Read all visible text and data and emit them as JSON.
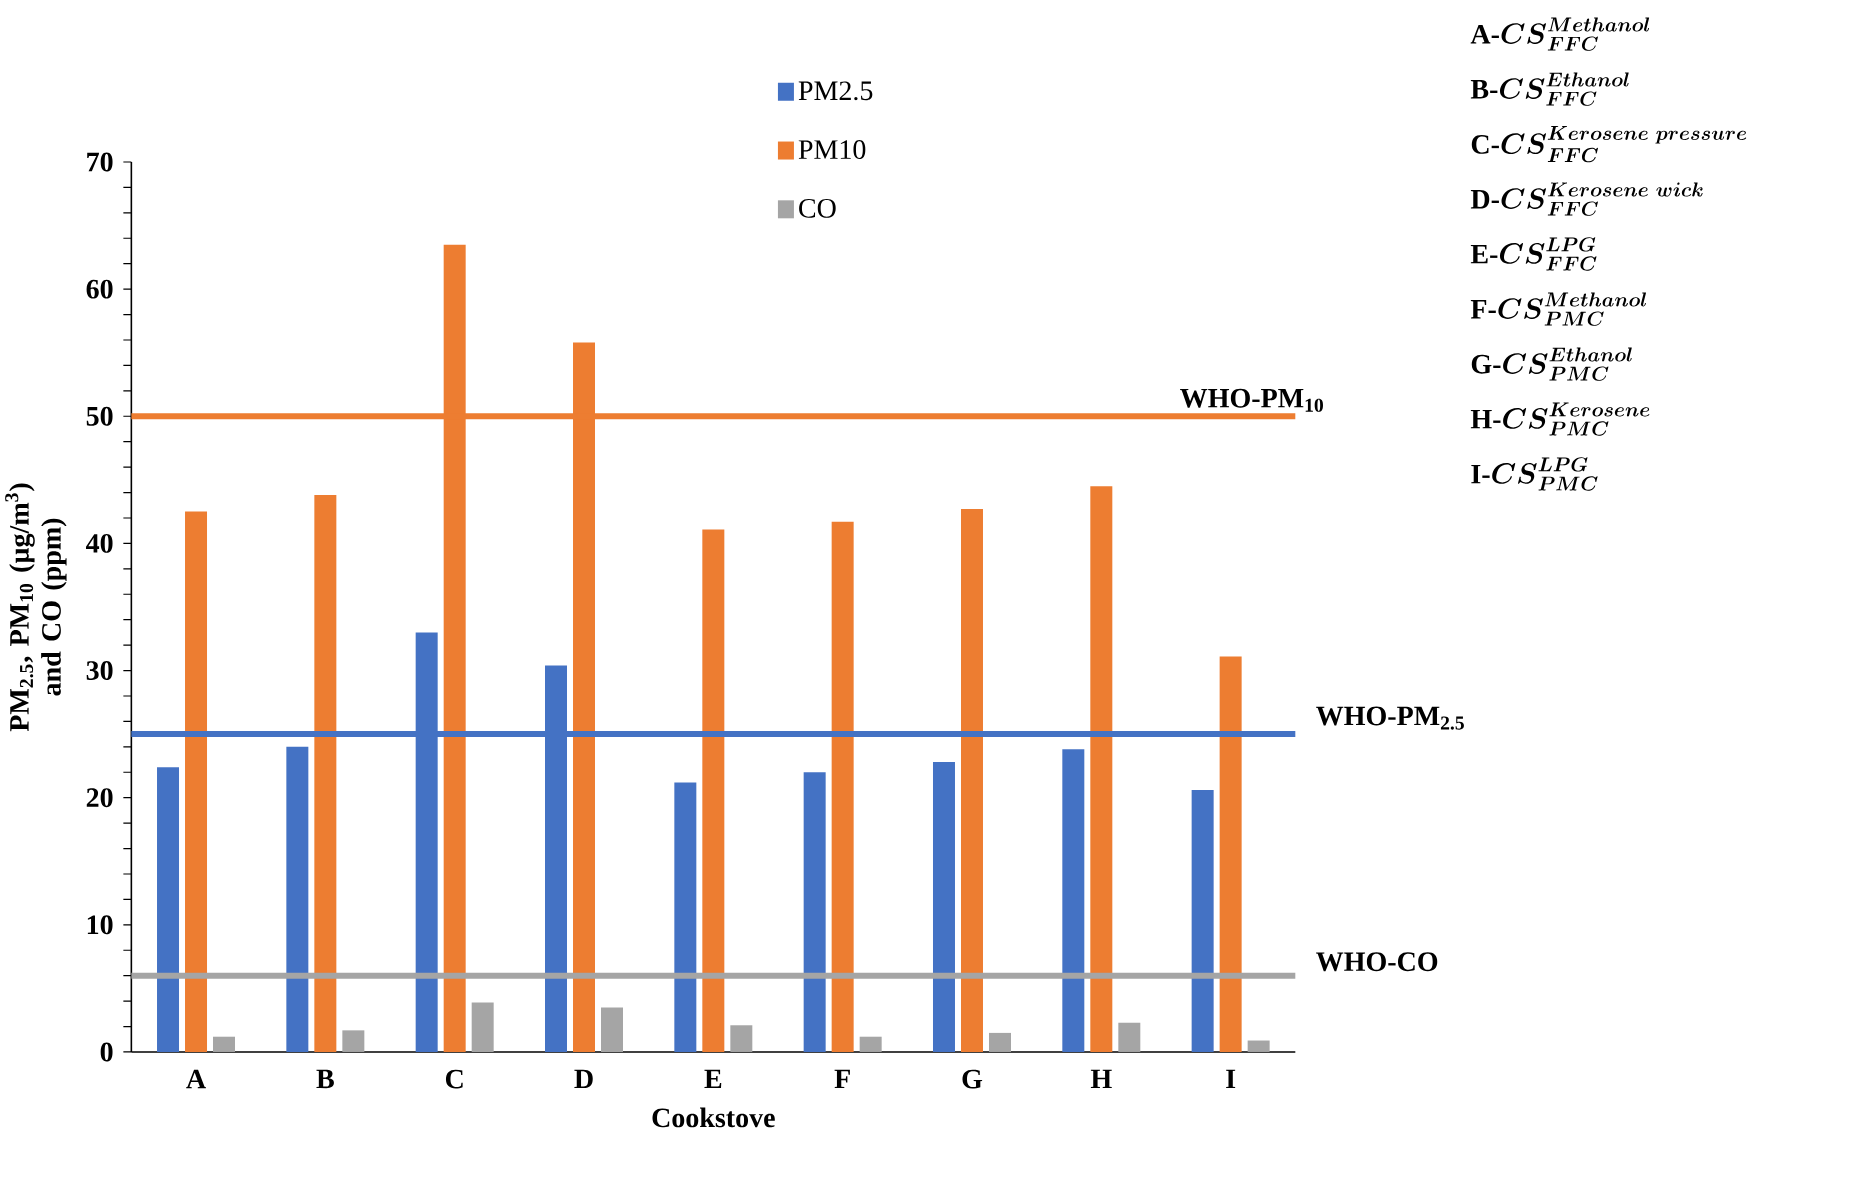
{
  "chart_data": {
    "type": "bar",
    "xlabel": "Cookstove",
    "ylabel": "PM$_{2.5}$, PM$_{10}$ (µg/m$^{3}$) and CO (ppm)",
    "categories": [
      "A",
      "B",
      "C",
      "D",
      "E",
      "F",
      "G",
      "H",
      "I"
    ],
    "series": [
      {
        "name": "PM2.5",
        "color": "#4472c4",
        "values": [
          22.4,
          24.0,
          33.0,
          30.4,
          21.2,
          22.0,
          22.8,
          23.8,
          20.6
        ]
      },
      {
        "name": "PM10",
        "color": "#ed7d31",
        "values": [
          42.5,
          43.8,
          63.5,
          55.8,
          41.1,
          41.7,
          42.7,
          44.5,
          31.1
        ]
      },
      {
        "name": "CO",
        "color": "#a5a5a5",
        "values": [
          1.2,
          1.7,
          3.9,
          3.5,
          2.1,
          1.2,
          1.5,
          2.3,
          0.9
        ]
      }
    ],
    "ylim": [
      0,
      70
    ],
    "yticks": [
      0,
      10,
      20,
      30,
      40,
      50,
      60,
      70
    ],
    "legend": "top",
    "grid": false,
    "ref_lines": [
      {
        "axis": "y",
        "value": 50,
        "label": "WHO-PM$_{10}$",
        "color": "#ed7d31"
      },
      {
        "axis": "y",
        "value": 25,
        "label": "WHO-PM$_{2.5}$",
        "color": "#4472c4"
      },
      {
        "axis": "y",
        "value": 6,
        "label": "WHO-CO",
        "color": "#a5a5a5"
      }
    ],
    "annotations": [
      "\\mathbf{A}\\mbox{-}\\boldsymbol{CS}_{\\boldsymbol{FFC}}^{\\boldsymbol{Methanol}}",
      "\\mathbf{B}\\mbox{-}\\boldsymbol{CS}_{\\boldsymbol{FFC}}^{\\boldsymbol{Ethanol}}",
      "\\mathbf{C}\\mbox{-}\\boldsymbol{CS}_{\\boldsymbol{FFC}}^{\\boldsymbol{Kerosene\\ pressure}}",
      "\\mathbf{D}\\mbox{-}\\boldsymbol{CS}_{\\boldsymbol{FFC}}^{\\boldsymbol{Kerosene\\ wick}}",
      "\\mathbf{E}\\mbox{-}\\boldsymbol{CS}_{\\boldsymbol{FFC}}^{\\boldsymbol{LPG}}",
      "\\mathbf{F}\\mbox{-}\\boldsymbol{CS}_{\\boldsymbol{PMC}}^{\\boldsymbol{Methanol}}",
      "\\mathbf{G}\\mbox{-}\\boldsymbol{CS}_{\\boldsymbol{PMC}}^{\\boldsymbol{Ethanol}}",
      "\\mathbf{H}\\mbox{-}\\boldsymbol{CS}_{\\boldsymbol{PMC}}^{\\boldsymbol{Kerosene}}",
      "\\mathbf{I}\\mbox{-}\\boldsymbol{CS}_{\\boldsymbol{PMC}}^{\\boldsymbol{LPG}}"
    ]
  }
}
